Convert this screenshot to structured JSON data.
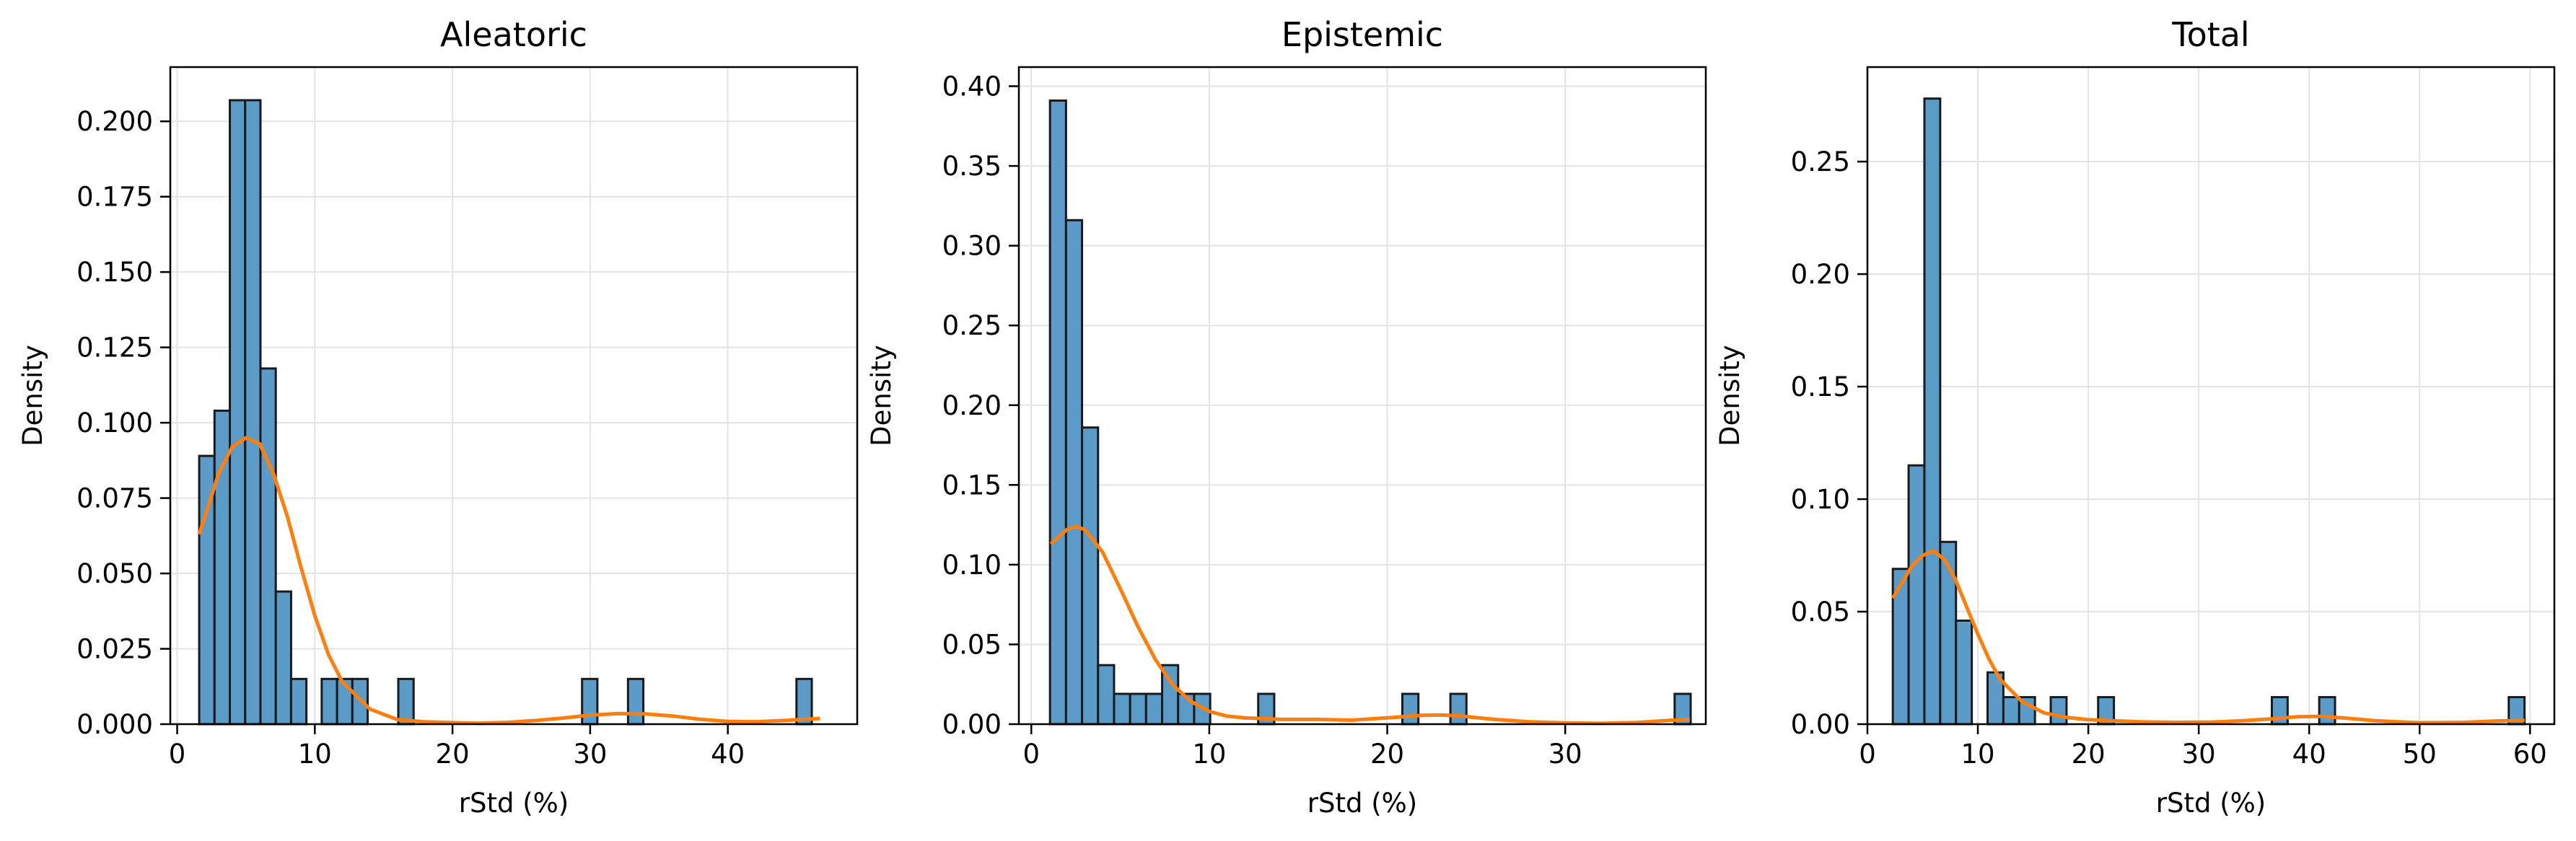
{
  "colors": {
    "bar_fill": "#5b9bc8",
    "bar_edge": "#1a1a1a",
    "kde": "#ff7f0e",
    "grid": "#e3e3e3"
  },
  "chart_data": [
    {
      "type": "bar",
      "title": "Aleatoric",
      "xlabel": "rStd (%)",
      "ylabel": "Density",
      "xlim": [
        -0.5,
        49.4
      ],
      "ylim": [
        0,
        0.218
      ],
      "grid": true,
      "xticks": [
        0,
        10,
        20,
        30,
        40
      ],
      "yticks": [
        0.0,
        0.025,
        0.05,
        0.075,
        0.1,
        0.125,
        0.15,
        0.175,
        0.2
      ],
      "ytick_labels": [
        "0.000",
        "0.025",
        "0.050",
        "0.075",
        "0.100",
        "0.125",
        "0.150",
        "0.175",
        "0.200"
      ],
      "bin_start": 1.6,
      "bin_width": 1.1125,
      "counts": [
        0.089,
        0.104,
        0.207,
        0.207,
        0.118,
        0.044,
        0.015,
        0,
        0.015,
        0.015,
        0.015,
        0,
        0,
        0.015,
        0,
        0,
        0,
        0,
        0,
        0,
        0,
        0,
        0,
        0,
        0,
        0.015,
        0,
        0,
        0.015,
        0,
        0,
        0,
        0,
        0,
        0,
        0,
        0,
        0,
        0,
        0.015
      ],
      "kde": {
        "x": [
          1.6,
          3,
          4,
          5,
          6,
          7,
          8,
          9,
          10,
          11,
          12,
          14,
          16,
          18,
          20,
          22,
          24,
          26,
          28,
          30,
          32,
          34,
          36,
          38,
          40,
          42,
          44,
          46,
          46.7
        ],
        "y": [
          0.063,
          0.083,
          0.092,
          0.095,
          0.093,
          0.083,
          0.069,
          0.052,
          0.036,
          0.023,
          0.014,
          0.005,
          0.0015,
          0.0008,
          0.0005,
          0.0003,
          0.0006,
          0.0012,
          0.002,
          0.003,
          0.0035,
          0.0034,
          0.0027,
          0.0016,
          0.0009,
          0.0008,
          0.0012,
          0.0017,
          0.0019
        ]
      }
    },
    {
      "type": "bar",
      "title": "Epistemic",
      "xlabel": "rStd (%)",
      "ylabel": "Density",
      "xlim": [
        -0.7,
        37.9
      ],
      "ylim": [
        0,
        0.412
      ],
      "grid": true,
      "xticks": [
        0,
        10,
        20,
        30
      ],
      "yticks": [
        0.0,
        0.05,
        0.1,
        0.15,
        0.2,
        0.25,
        0.3,
        0.35,
        0.4
      ],
      "ytick_labels": [
        "0.00",
        "0.05",
        "0.10",
        "0.15",
        "0.20",
        "0.25",
        "0.30",
        "0.35",
        "0.40"
      ],
      "bin_start": 1.05,
      "bin_width": 0.9,
      "counts": [
        0.391,
        0.316,
        0.186,
        0.037,
        0.019,
        0.019,
        0.019,
        0.037,
        0.019,
        0.019,
        0,
        0,
        0,
        0.019,
        0,
        0,
        0,
        0,
        0,
        0,
        0,
        0,
        0.019,
        0,
        0,
        0.019,
        0,
        0,
        0,
        0,
        0,
        0,
        0,
        0,
        0,
        0,
        0,
        0,
        0,
        0.019
      ],
      "kde": {
        "x": [
          1.1,
          2,
          2.5,
          3,
          4,
          5,
          6,
          7,
          8,
          9,
          10,
          11,
          12,
          14,
          16,
          18,
          20,
          22,
          23,
          24,
          26,
          28,
          30,
          32,
          34,
          36,
          37
        ],
        "y": [
          0.113,
          0.122,
          0.124,
          0.122,
          0.108,
          0.085,
          0.061,
          0.04,
          0.024,
          0.014,
          0.008,
          0.005,
          0.004,
          0.003,
          0.003,
          0.0025,
          0.004,
          0.0055,
          0.0058,
          0.0052,
          0.003,
          0.0015,
          0.0008,
          0.0005,
          0.001,
          0.0025,
          0.003
        ]
      }
    },
    {
      "type": "bar",
      "title": "Total",
      "xlabel": "rStd (%)",
      "ylabel": "Density",
      "xlim": [
        0.0,
        62.2
      ],
      "ylim": [
        0,
        0.292
      ],
      "grid": true,
      "xticks": [
        0,
        10,
        20,
        30,
        40,
        50,
        60
      ],
      "yticks": [
        0.0,
        0.05,
        0.1,
        0.15,
        0.2,
        0.25
      ],
      "ytick_labels": [
        "0.00",
        "0.05",
        "0.10",
        "0.15",
        "0.20",
        "0.25"
      ],
      "bin_start": 2.3,
      "bin_width": 1.43,
      "counts": [
        0.069,
        0.115,
        0.278,
        0.081,
        0.046,
        0,
        0.023,
        0.012,
        0.012,
        0,
        0.012,
        0,
        0,
        0.012,
        0,
        0,
        0,
        0,
        0,
        0,
        0,
        0,
        0,
        0,
        0.012,
        0,
        0,
        0.012,
        0,
        0,
        0,
        0,
        0,
        0,
        0,
        0,
        0,
        0,
        0,
        0.012
      ],
      "kde": {
        "x": [
          2.3,
          4,
          5,
          6,
          7,
          8,
          9,
          10,
          11,
          12,
          14,
          16,
          18,
          20,
          22,
          25,
          28,
          31,
          34,
          37,
          39,
          41,
          43,
          46,
          50,
          54,
          57,
          59.5
        ],
        "y": [
          0.056,
          0.07,
          0.075,
          0.077,
          0.073,
          0.064,
          0.052,
          0.04,
          0.029,
          0.02,
          0.01,
          0.005,
          0.003,
          0.002,
          0.0015,
          0.001,
          0.0008,
          0.0009,
          0.0015,
          0.0025,
          0.0033,
          0.0035,
          0.0028,
          0.0015,
          0.0006,
          0.0008,
          0.0014,
          0.0017
        ]
      }
    }
  ]
}
